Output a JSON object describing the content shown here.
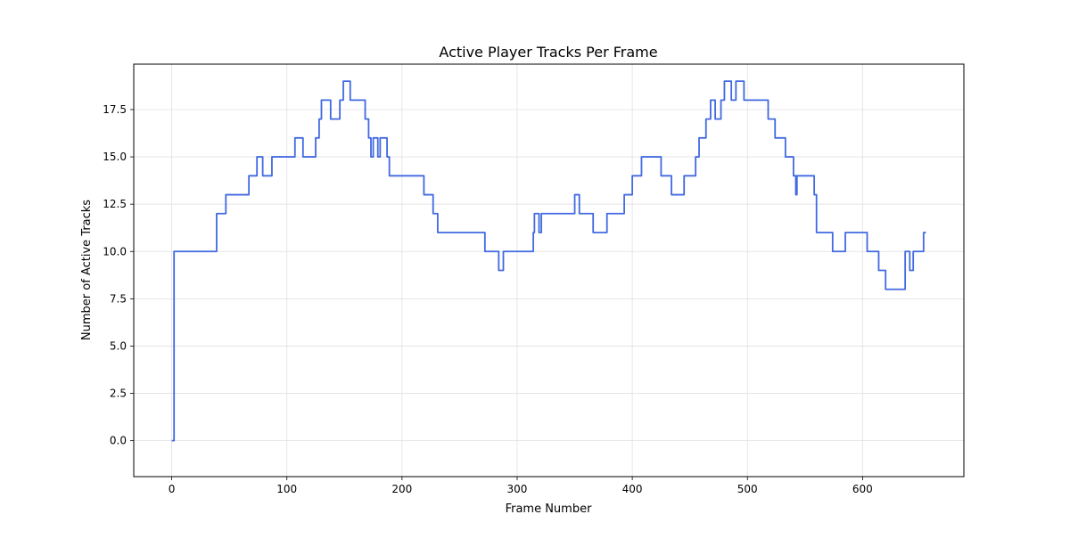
{
  "chart_data": {
    "type": "line",
    "title": "Active Player Tracks Per Frame",
    "xlabel": "Frame Number",
    "ylabel": "Number of Active Tracks",
    "xlim": [
      -33,
      688
    ],
    "ylim": [
      -1.9,
      19.9
    ],
    "x_ticks": [
      0,
      100,
      200,
      300,
      400,
      500,
      600
    ],
    "x_tick_labels": [
      "0",
      "100",
      "200",
      "300",
      "400",
      "500",
      "600"
    ],
    "y_ticks": [
      0,
      2.5,
      5,
      7.5,
      10,
      12.5,
      15,
      17.5
    ],
    "y_tick_labels": [
      "0.0",
      "2.5",
      "5.0",
      "7.5",
      "10.0",
      "12.5",
      "15.0",
      "17.5"
    ],
    "grid": true,
    "line_color": "#4169e1",
    "series": [
      {
        "steps": [
          [
            0,
            0
          ],
          [
            2,
            10
          ],
          [
            39,
            12
          ],
          [
            47,
            13
          ],
          [
            67,
            14
          ],
          [
            74,
            15
          ],
          [
            79,
            14
          ],
          [
            87,
            15
          ],
          [
            107,
            16
          ],
          [
            114,
            15
          ],
          [
            125,
            16
          ],
          [
            128,
            17
          ],
          [
            130,
            18
          ],
          [
            138,
            17
          ],
          [
            146,
            18
          ],
          [
            149,
            19
          ],
          [
            155,
            18
          ],
          [
            168,
            17
          ],
          [
            171,
            16
          ],
          [
            173,
            15
          ],
          [
            175,
            16
          ],
          [
            179,
            15
          ],
          [
            181,
            16
          ],
          [
            187,
            15
          ],
          [
            189,
            14
          ],
          [
            219,
            13
          ],
          [
            227,
            12
          ],
          [
            231,
            11
          ],
          [
            272,
            10
          ],
          [
            284,
            9
          ],
          [
            288,
            10
          ],
          [
            314,
            11
          ],
          [
            315,
            12
          ],
          [
            319,
            11
          ],
          [
            321,
            12
          ],
          [
            350,
            13
          ],
          [
            354,
            12
          ],
          [
            366,
            11
          ],
          [
            378,
            12
          ],
          [
            393,
            13
          ],
          [
            400,
            14
          ],
          [
            408,
            15
          ],
          [
            425,
            14
          ],
          [
            434,
            13
          ],
          [
            445,
            14
          ],
          [
            455,
            15
          ],
          [
            458,
            16
          ],
          [
            464,
            17
          ],
          [
            468,
            18
          ],
          [
            472,
            17
          ],
          [
            477,
            18
          ],
          [
            480,
            19
          ],
          [
            486,
            18
          ],
          [
            490,
            19
          ],
          [
            497,
            18
          ],
          [
            518,
            17
          ],
          [
            524,
            16
          ],
          [
            533,
            15
          ],
          [
            540,
            14
          ],
          [
            542,
            13
          ],
          [
            543,
            14
          ],
          [
            558,
            13
          ],
          [
            560,
            11
          ],
          [
            574,
            10
          ],
          [
            585,
            11
          ],
          [
            604,
            10
          ],
          [
            614,
            9
          ],
          [
            620,
            8
          ],
          [
            637,
            10
          ],
          [
            641,
            9
          ],
          [
            644,
            10
          ],
          [
            653,
            11
          ],
          [
            655,
            11
          ]
        ]
      }
    ]
  }
}
